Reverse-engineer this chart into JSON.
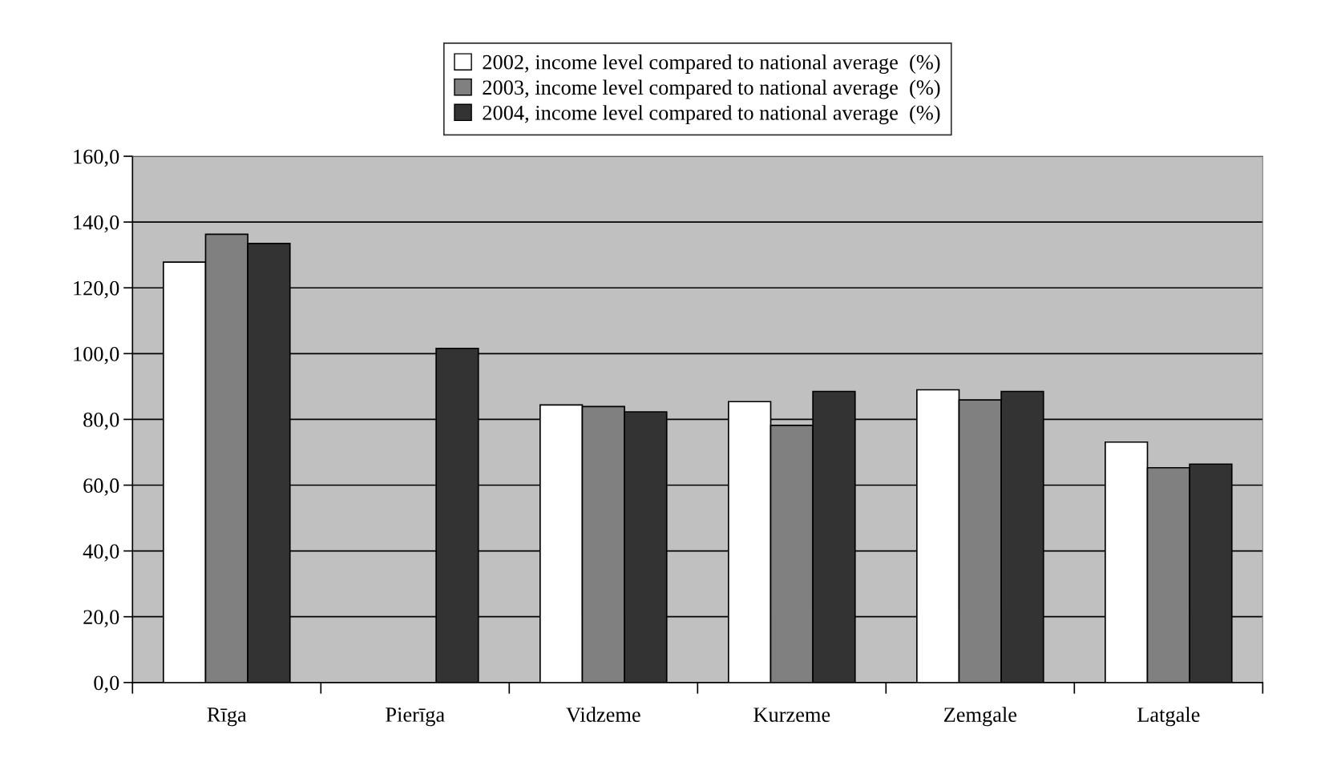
{
  "chart_data": {
    "type": "bar",
    "categories": [
      "Rīga",
      "Pierīga",
      "Vidzeme",
      "Kurzeme",
      "Zemgale",
      "Latgale"
    ],
    "series": [
      {
        "name": "2002, income level compared to national average  (%)",
        "color": "#ffffff",
        "values": [
          127.8,
          null,
          84.4,
          85.4,
          89.0,
          73.1
        ]
      },
      {
        "name": "2003, income level compared to national average  (%)",
        "color": "#808080",
        "values": [
          136.3,
          null,
          83.9,
          78.2,
          85.9,
          65.3
        ]
      },
      {
        "name": "2004, income level compared to national average  (%)",
        "color": "#333333",
        "values": [
          133.5,
          101.6,
          82.3,
          88.5,
          88.5,
          66.4
        ]
      }
    ],
    "ylim": [
      0,
      160
    ],
    "yticks": [
      {
        "value": 0,
        "label": "0,0"
      },
      {
        "value": 20,
        "label": "20,0"
      },
      {
        "value": 40,
        "label": "40,0"
      },
      {
        "value": 60,
        "label": "60,0"
      },
      {
        "value": 80,
        "label": "80,0"
      },
      {
        "value": 100,
        "label": "100,0"
      },
      {
        "value": 120,
        "label": "120,0"
      },
      {
        "value": 140,
        "label": "140,0"
      },
      {
        "value": 160,
        "label": "160,0"
      }
    ],
    "grid": "y",
    "legend": "top"
  }
}
